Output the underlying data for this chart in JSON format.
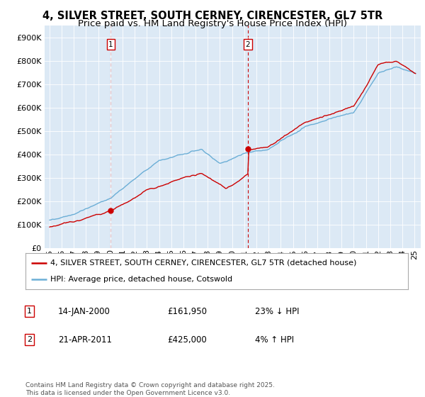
{
  "title_line1": "4, SILVER STREET, SOUTH CERNEY, CIRENCESTER, GL7 5TR",
  "title_line2": "Price paid vs. HM Land Registry's House Price Index (HPI)",
  "legend_line1": "4, SILVER STREET, SOUTH CERNEY, CIRENCESTER, GL7 5TR (detached house)",
  "legend_line2": "HPI: Average price, detached house, Cotswold",
  "annotation1_date": "14-JAN-2000",
  "annotation1_price": "£161,950",
  "annotation1_hpi": "23% ↓ HPI",
  "annotation1_year": 2000.04,
  "annotation1_value": 161950,
  "annotation2_date": "21-APR-2011",
  "annotation2_price": "£425,000",
  "annotation2_hpi": "4% ↑ HPI",
  "annotation2_year": 2011.3,
  "annotation2_value": 425000,
  "footer": "Contains HM Land Registry data © Crown copyright and database right 2025.\nThis data is licensed under the Open Government Licence v3.0.",
  "ylim": [
    0,
    950000
  ],
  "yticks": [
    0,
    100000,
    200000,
    300000,
    400000,
    500000,
    600000,
    700000,
    800000,
    900000
  ],
  "background_color": "#dce9f5",
  "hpi_color": "#6baed6",
  "price_color": "#cc0000",
  "dashed_color": "#cc0000",
  "grid_color": "white",
  "title_fontsize": 10.5,
  "subtitle_fontsize": 9.5,
  "tick_fontsize": 8,
  "legend_fontsize": 8,
  "annot_fontsize": 8.5,
  "footer_fontsize": 6.5
}
